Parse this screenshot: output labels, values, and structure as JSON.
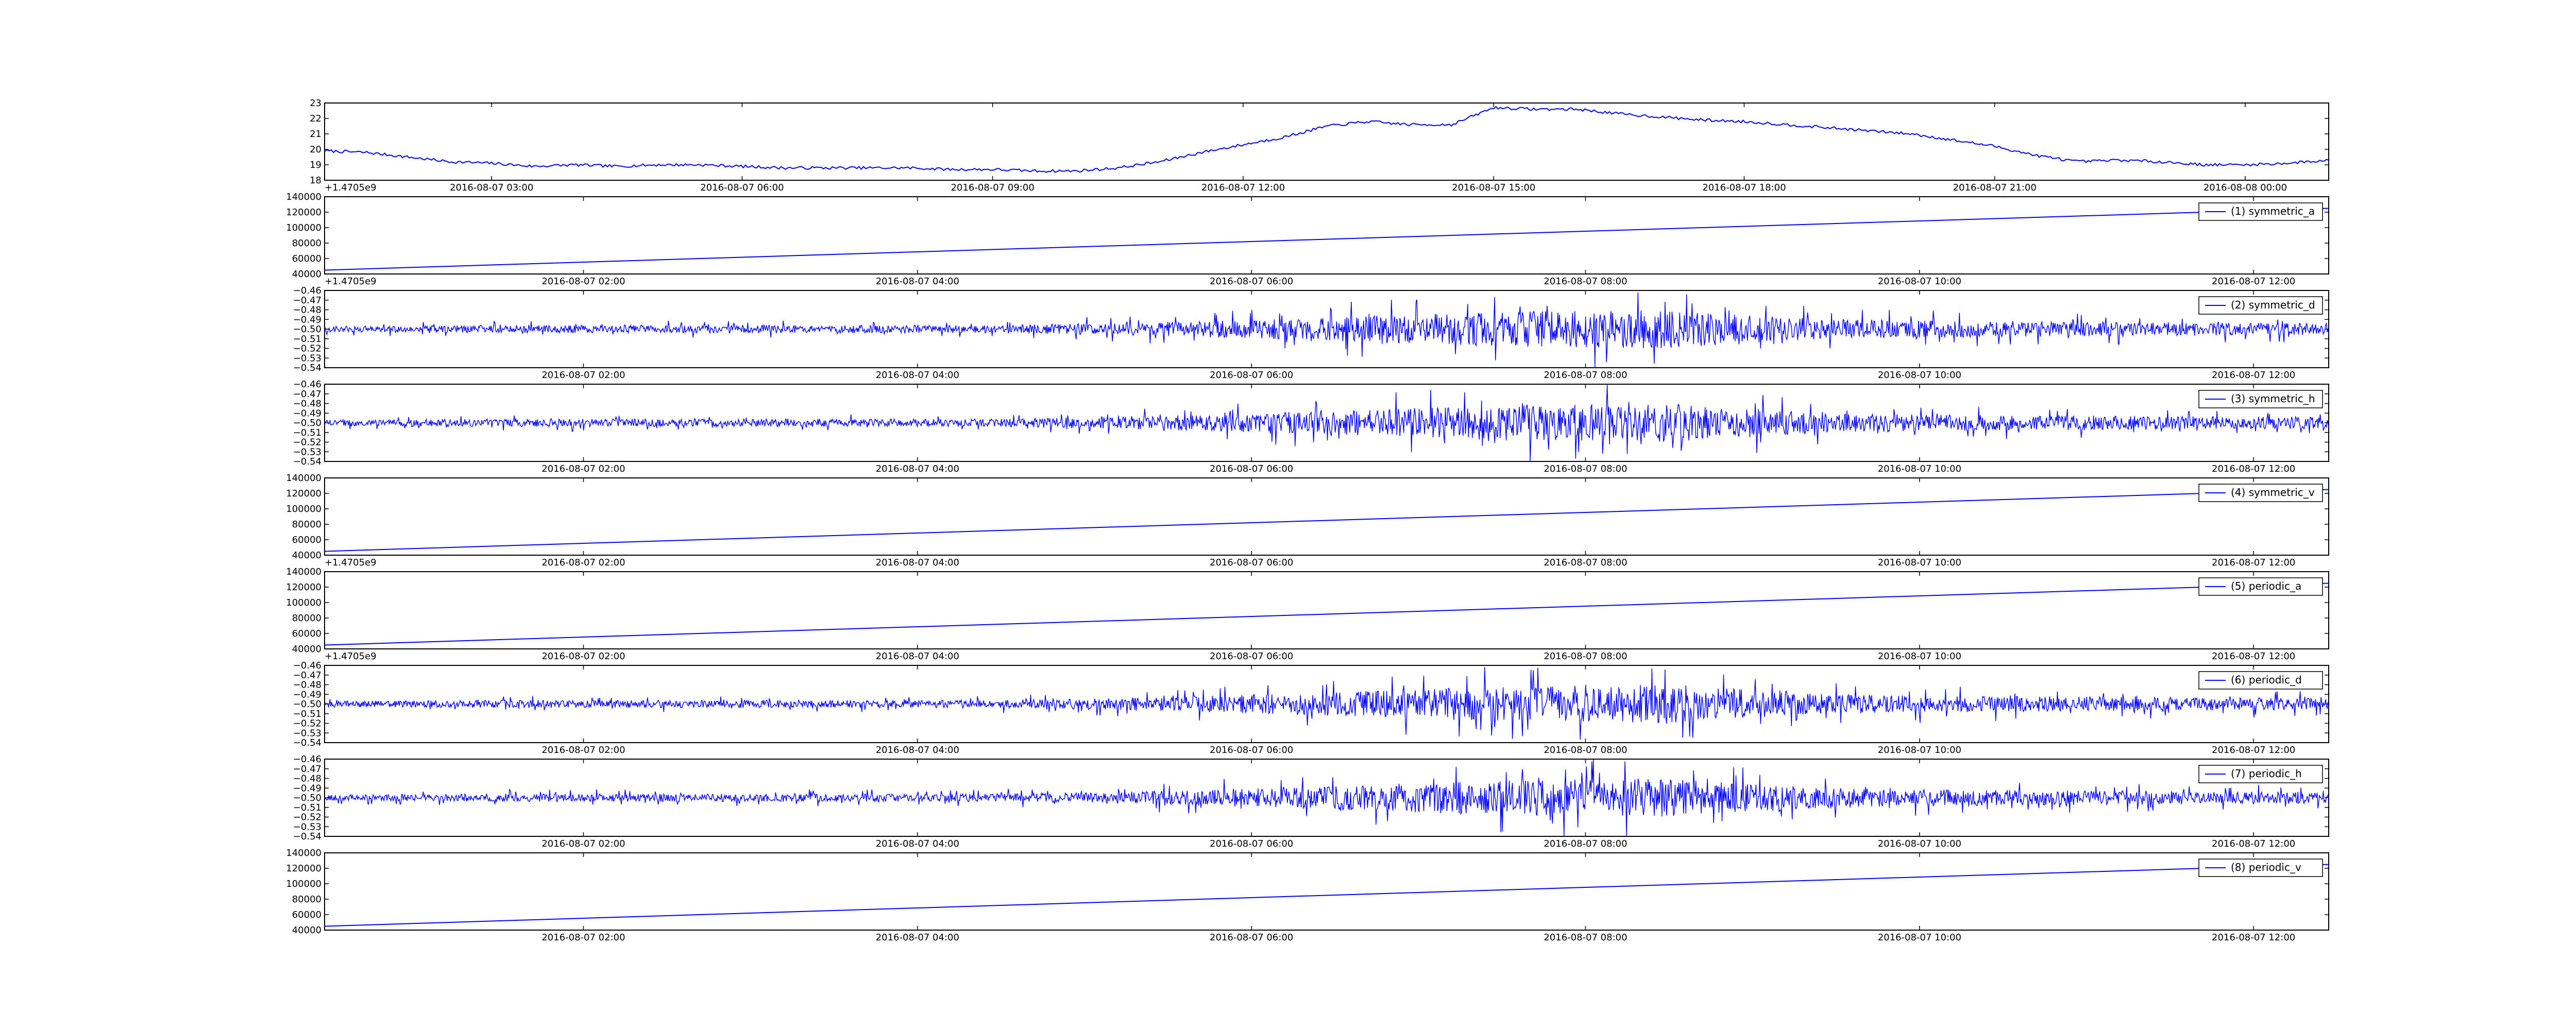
{
  "colors": {
    "line": "#0000ff",
    "axes": "#000000",
    "background": "#ffffff"
  },
  "chart_data": [
    {
      "type": "line",
      "title": "",
      "xlabel": "",
      "ylabel": "",
      "x_type": "datetime",
      "x_range": [
        "2016-08-07 01:00",
        "2016-08-08 01:00"
      ],
      "xticks": [
        "2016-08-07 03:00",
        "2016-08-07 06:00",
        "2016-08-07 09:00",
        "2016-08-07 12:00",
        "2016-08-07 15:00",
        "2016-08-07 18:00",
        "2016-08-07 21:00",
        "2016-08-08 00:00"
      ],
      "ylim": [
        18,
        23
      ],
      "yticks": [
        "18",
        "19",
        "20",
        "21",
        "22",
        "23"
      ],
      "offset_label": "+1.4705e9",
      "grid": false,
      "legend": null,
      "series": [
        {
          "x": [
            "2016-08-07 01:00",
            "2016-08-07 01:30",
            "2016-08-07 02:00",
            "2016-08-07 02:30",
            "2016-08-07 03:00",
            "2016-08-07 03:30",
            "2016-08-07 04:00",
            "2016-08-07 04:30",
            "2016-08-07 05:00",
            "2016-08-07 05:30",
            "2016-08-07 06:00",
            "2016-08-07 06:30",
            "2016-08-07 07:00",
            "2016-08-07 07:30",
            "2016-08-07 08:00",
            "2016-08-07 08:30",
            "2016-08-07 09:00",
            "2016-08-07 09:30",
            "2016-08-07 10:00",
            "2016-08-07 10:30",
            "2016-08-07 11:00",
            "2016-08-07 11:30",
            "2016-08-07 12:00",
            "2016-08-07 12:30",
            "2016-08-07 13:00",
            "2016-08-07 13:30",
            "2016-08-07 14:00",
            "2016-08-07 14:30",
            "2016-08-07 15:00",
            "2016-08-07 15:30",
            "2016-08-07 16:00",
            "2016-08-07 16:30",
            "2016-08-07 17:00",
            "2016-08-07 17:30",
            "2016-08-07 18:00",
            "2016-08-07 18:30",
            "2016-08-07 19:00",
            "2016-08-07 19:30",
            "2016-08-07 20:00",
            "2016-08-07 20:30",
            "2016-08-07 21:00",
            "2016-08-07 21:30",
            "2016-08-07 22:00",
            "2016-08-07 22:30",
            "2016-08-07 23:00",
            "2016-08-07 23:30",
            "2016-08-08 00:00",
            "2016-08-08 00:30",
            "2016-08-08 01:00"
          ],
          "values": [
            19.9,
            19.8,
            19.5,
            19.2,
            19.1,
            18.9,
            19.0,
            18.9,
            19.0,
            19.0,
            18.9,
            18.8,
            18.8,
            18.8,
            18.8,
            18.7,
            18.7,
            18.6,
            18.6,
            18.8,
            19.2,
            19.8,
            20.3,
            20.8,
            21.5,
            21.8,
            21.6,
            21.6,
            22.7,
            22.6,
            22.6,
            22.3,
            22.1,
            21.9,
            21.8,
            21.6,
            21.4,
            21.2,
            21.0,
            20.6,
            20.2,
            19.6,
            19.2,
            19.3,
            19.2,
            19.0,
            19.0,
            19.1,
            19.3
          ]
        }
      ]
    },
    {
      "type": "line",
      "title": "",
      "xlabel": "",
      "ylabel": "",
      "x_type": "datetime",
      "x_range": [
        "2016-08-07 00:27",
        "2016-08-07 12:27"
      ],
      "xticks": [
        "2016-08-07 02:00",
        "2016-08-07 04:00",
        "2016-08-07 06:00",
        "2016-08-07 08:00",
        "2016-08-07 10:00",
        "2016-08-07 12:00"
      ],
      "ylim": [
        40000,
        140000
      ],
      "yticks": [
        "40000",
        "60000",
        "80000",
        "100000",
        "120000",
        "140000"
      ],
      "offset_label": "+1.4705e9",
      "legend": "upper right",
      "series": [
        {
          "name": "(1) symmetric_a",
          "x": [
            "2016-08-07 00:27",
            "2016-08-07 12:27"
          ],
          "values": [
            45000,
            125000
          ]
        }
      ]
    },
    {
      "type": "line",
      "title": "",
      "xlabel": "",
      "ylabel": "",
      "x_type": "datetime",
      "x_range": [
        "2016-08-07 00:27",
        "2016-08-07 12:27"
      ],
      "xticks": [
        "2016-08-07 02:00",
        "2016-08-07 04:00",
        "2016-08-07 06:00",
        "2016-08-07 08:00",
        "2016-08-07 10:00",
        "2016-08-07 12:00"
      ],
      "ylim": [
        -0.54,
        -0.46
      ],
      "yticks": [
        "−0.54",
        "−0.53",
        "−0.52",
        "−0.51",
        "−0.50",
        "−0.49",
        "−0.48",
        "−0.47",
        "−0.46"
      ],
      "legend": "upper right",
      "series": [
        {
          "name": "(2) symmetric_d",
          "baseline": -0.5,
          "x": [
            "2016-08-07 00:27",
            "2016-08-07 01:27",
            "2016-08-07 02:27",
            "2016-08-07 03:27",
            "2016-08-07 04:27",
            "2016-08-07 05:27",
            "2016-08-07 06:27",
            "2016-08-07 07:27",
            "2016-08-07 08:27",
            "2016-08-07 09:27",
            "2016-08-07 10:27",
            "2016-08-07 11:27",
            "2016-08-07 12:27"
          ],
          "amplitude": [
            0.003,
            0.004,
            0.004,
            0.004,
            0.004,
            0.007,
            0.012,
            0.018,
            0.02,
            0.01,
            0.008,
            0.007,
            0.006
          ]
        }
      ]
    },
    {
      "type": "line",
      "title": "",
      "xlabel": "",
      "ylabel": "",
      "x_type": "datetime",
      "x_range": [
        "2016-08-07 00:27",
        "2016-08-07 12:27"
      ],
      "xticks": [
        "2016-08-07 02:00",
        "2016-08-07 04:00",
        "2016-08-07 06:00",
        "2016-08-07 08:00",
        "2016-08-07 10:00",
        "2016-08-07 12:00"
      ],
      "ylim": [
        -0.54,
        -0.46
      ],
      "yticks": [
        "−0.54",
        "−0.53",
        "−0.52",
        "−0.51",
        "−0.50",
        "−0.49",
        "−0.48",
        "−0.47",
        "−0.46"
      ],
      "legend": "upper right",
      "series": [
        {
          "name": "(3) symmetric_h",
          "baseline": -0.5,
          "x": [
            "2016-08-07 00:27",
            "2016-08-07 01:27",
            "2016-08-07 02:27",
            "2016-08-07 03:27",
            "2016-08-07 04:27",
            "2016-08-07 05:27",
            "2016-08-07 06:27",
            "2016-08-07 07:27",
            "2016-08-07 08:27",
            "2016-08-07 09:27",
            "2016-08-07 10:27",
            "2016-08-07 11:27",
            "2016-08-07 12:27"
          ],
          "amplitude": [
            0.003,
            0.004,
            0.004,
            0.004,
            0.004,
            0.007,
            0.012,
            0.018,
            0.02,
            0.01,
            0.008,
            0.007,
            0.006
          ]
        }
      ]
    },
    {
      "type": "line",
      "title": "",
      "xlabel": "",
      "ylabel": "",
      "x_type": "datetime",
      "x_range": [
        "2016-08-07 00:27",
        "2016-08-07 12:27"
      ],
      "xticks": [
        "2016-08-07 02:00",
        "2016-08-07 04:00",
        "2016-08-07 06:00",
        "2016-08-07 08:00",
        "2016-08-07 10:00",
        "2016-08-07 12:00"
      ],
      "ylim": [
        40000,
        140000
      ],
      "yticks": [
        "40000",
        "60000",
        "80000",
        "100000",
        "120000",
        "140000"
      ],
      "offset_label": "+1.4705e9",
      "legend": "upper right",
      "series": [
        {
          "name": "(4) symmetric_v",
          "x": [
            "2016-08-07 00:27",
            "2016-08-07 12:27"
          ],
          "values": [
            45000,
            125000
          ]
        }
      ]
    },
    {
      "type": "line",
      "title": "",
      "xlabel": "",
      "ylabel": "",
      "x_type": "datetime",
      "x_range": [
        "2016-08-07 00:27",
        "2016-08-07 12:27"
      ],
      "xticks": [
        "2016-08-07 02:00",
        "2016-08-07 04:00",
        "2016-08-07 06:00",
        "2016-08-07 08:00",
        "2016-08-07 10:00",
        "2016-08-07 12:00"
      ],
      "ylim": [
        40000,
        140000
      ],
      "yticks": [
        "40000",
        "60000",
        "80000",
        "100000",
        "120000",
        "140000"
      ],
      "offset_label": "+1.4705e9",
      "legend": "upper right",
      "series": [
        {
          "name": "(5) periodic_a",
          "x": [
            "2016-08-07 00:27",
            "2016-08-07 12:27"
          ],
          "values": [
            45000,
            125000
          ]
        }
      ]
    },
    {
      "type": "line",
      "title": "",
      "xlabel": "",
      "ylabel": "",
      "x_type": "datetime",
      "x_range": [
        "2016-08-07 00:27",
        "2016-08-07 12:27"
      ],
      "xticks": [
        "2016-08-07 02:00",
        "2016-08-07 04:00",
        "2016-08-07 06:00",
        "2016-08-07 08:00",
        "2016-08-07 10:00",
        "2016-08-07 12:00"
      ],
      "ylim": [
        -0.54,
        -0.46
      ],
      "yticks": [
        "−0.54",
        "−0.53",
        "−0.52",
        "−0.51",
        "−0.50",
        "−0.49",
        "−0.48",
        "−0.47",
        "−0.46"
      ],
      "legend": "upper right",
      "series": [
        {
          "name": "(6) periodic_d",
          "baseline": -0.5,
          "x": [
            "2016-08-07 00:27",
            "2016-08-07 01:27",
            "2016-08-07 02:27",
            "2016-08-07 03:27",
            "2016-08-07 04:27",
            "2016-08-07 05:27",
            "2016-08-07 06:27",
            "2016-08-07 07:27",
            "2016-08-07 08:27",
            "2016-08-07 09:27",
            "2016-08-07 10:27",
            "2016-08-07 11:27",
            "2016-08-07 12:27"
          ],
          "amplitude": [
            0.003,
            0.004,
            0.004,
            0.004,
            0.004,
            0.007,
            0.012,
            0.018,
            0.02,
            0.01,
            0.008,
            0.007,
            0.006
          ]
        }
      ]
    },
    {
      "type": "line",
      "title": "",
      "xlabel": "",
      "ylabel": "",
      "x_type": "datetime",
      "x_range": [
        "2016-08-07 00:27",
        "2016-08-07 12:27"
      ],
      "xticks": [
        "2016-08-07 02:00",
        "2016-08-07 04:00",
        "2016-08-07 06:00",
        "2016-08-07 08:00",
        "2016-08-07 10:00",
        "2016-08-07 12:00"
      ],
      "ylim": [
        -0.54,
        -0.46
      ],
      "yticks": [
        "−0.54",
        "−0.53",
        "−0.52",
        "−0.51",
        "−0.50",
        "−0.49",
        "−0.48",
        "−0.47",
        "−0.46"
      ],
      "legend": "upper right",
      "series": [
        {
          "name": "(7) periodic_h",
          "baseline": -0.5,
          "x": [
            "2016-08-07 00:27",
            "2016-08-07 01:27",
            "2016-08-07 02:27",
            "2016-08-07 03:27",
            "2016-08-07 04:27",
            "2016-08-07 05:27",
            "2016-08-07 06:27",
            "2016-08-07 07:27",
            "2016-08-07 08:27",
            "2016-08-07 09:27",
            "2016-08-07 10:27",
            "2016-08-07 11:27",
            "2016-08-07 12:27"
          ],
          "amplitude": [
            0.003,
            0.004,
            0.004,
            0.004,
            0.004,
            0.007,
            0.012,
            0.018,
            0.02,
            0.01,
            0.008,
            0.007,
            0.006
          ]
        }
      ]
    },
    {
      "type": "line",
      "title": "",
      "xlabel": "",
      "ylabel": "",
      "x_type": "datetime",
      "x_range": [
        "2016-08-07 00:27",
        "2016-08-07 12:27"
      ],
      "xticks": [
        "2016-08-07 02:00",
        "2016-08-07 04:00",
        "2016-08-07 06:00",
        "2016-08-07 08:00",
        "2016-08-07 10:00",
        "2016-08-07 12:00"
      ],
      "ylim": [
        40000,
        140000
      ],
      "yticks": [
        "40000",
        "60000",
        "80000",
        "100000",
        "120000",
        "140000"
      ],
      "legend": "upper right",
      "series": [
        {
          "name": "(8) periodic_v",
          "x": [
            "2016-08-07 00:27",
            "2016-08-07 12:27"
          ],
          "values": [
            45000,
            125000
          ]
        }
      ]
    }
  ]
}
